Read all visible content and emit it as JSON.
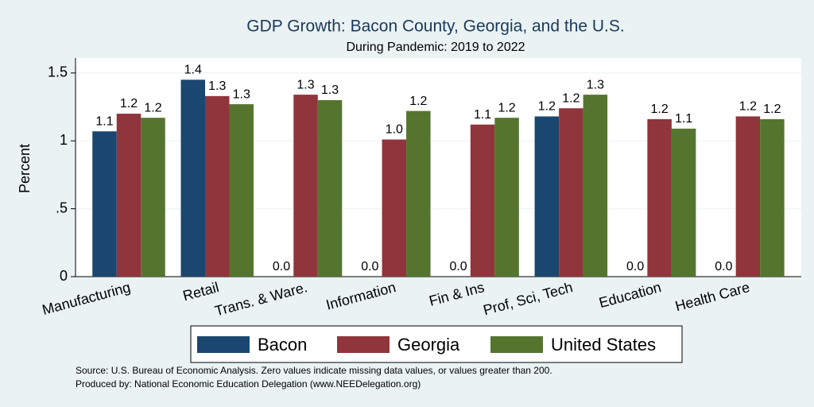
{
  "chart_data": {
    "type": "bar",
    "title": "GDP Growth: Bacon County, Georgia, and the U.S.",
    "subtitle": "During Pandemic: 2019 to 2022",
    "y_label": "Percent",
    "categories": [
      "Manufacturing",
      "Retail",
      "Trans. & Ware.",
      "Information",
      "Fin & Ins",
      "Prof, Sci, Tech",
      "Education",
      "Health Care"
    ],
    "series": [
      {
        "name": "Bacon",
        "color": "#1a476f",
        "values": [
          1.07,
          1.45,
          0,
          0,
          0,
          1.18,
          0,
          0
        ],
        "value_labels": [
          "1.1",
          "1.4",
          "0.0",
          "0.0",
          "0.0",
          "1.2",
          "0.0",
          "0.0"
        ]
      },
      {
        "name": "Georgia",
        "color": "#90353b",
        "values": [
          1.2,
          1.33,
          1.34,
          1.01,
          1.12,
          1.24,
          1.16,
          1.18
        ],
        "value_labels": [
          "1.2",
          "1.3",
          "1.3",
          "1.0",
          "1.1",
          "1.2",
          "1.2",
          "1.2"
        ]
      },
      {
        "name": "United States",
        "color": "#55752f",
        "values": [
          1.17,
          1.27,
          1.3,
          1.22,
          1.17,
          1.34,
          1.09,
          1.16
        ],
        "value_labels": [
          "1.2",
          "1.3",
          "1.3",
          "1.2",
          "1.2",
          "1.3",
          "1.1",
          "1.2"
        ]
      }
    ],
    "ylim": [
      0,
      1.61
    ],
    "yticks": [
      0,
      {
        "value": 0.5,
        "label": ".5"
      },
      1,
      1.5
    ],
    "grid": true,
    "legend": "bottom",
    "notes": [
      "Source: U.S. Bureau of Economic Analysis. Zero values indicate missing data values, or values greater than 200.",
      "Produced by: National Economic Education Delegation (www.NEEDelegation.org)"
    ]
  }
}
